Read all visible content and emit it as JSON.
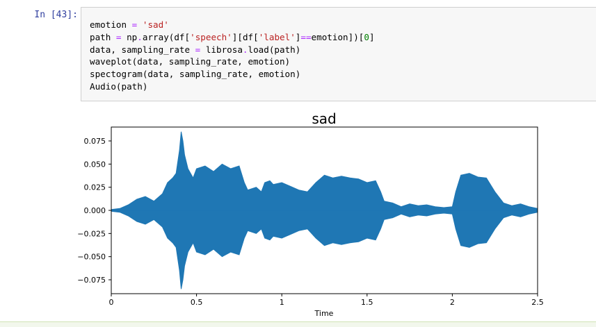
{
  "cell": {
    "prompt": "In [43]:",
    "code_lines": [
      "emotion = 'sad'",
      "path = np.array(df['speech'][df['label']==emotion])[0]",
      "data, sampling_rate = librosa.load(path)",
      "waveplot(data, sampling_rate, emotion)",
      "spectogram(data, sampling_rate, emotion)",
      "Audio(path)"
    ]
  },
  "colors": {
    "waveform": "#1f77b4",
    "prompt": "#303f9f",
    "cell_background": "#f7f7f7"
  },
  "chart_data": {
    "type": "area",
    "title": "sad",
    "xlabel": "Time",
    "ylabel": "",
    "xlim": [
      0,
      2.5
    ],
    "ylim": [
      -0.09,
      0.09
    ],
    "xticks": [
      0,
      0.5,
      1,
      1.5,
      2,
      2.5
    ],
    "xtick_labels": [
      "0",
      "0.5",
      "1",
      "1.5",
      "2",
      "2.5"
    ],
    "yticks": [
      0.075,
      0.05,
      0.025,
      0.0,
      -0.025,
      -0.05,
      -0.075
    ],
    "ytick_labels": [
      "0.075",
      "0.050",
      "0.025",
      "0.000",
      "−0.025",
      "−0.050",
      "−0.075"
    ],
    "grid": false,
    "series": [
      {
        "x": [
          0.0,
          0.05,
          0.1,
          0.15,
          0.2,
          0.25,
          0.3,
          0.33,
          0.36,
          0.38,
          0.4,
          0.41,
          0.42,
          0.43,
          0.45,
          0.48,
          0.5,
          0.55,
          0.6,
          0.65,
          0.7,
          0.75,
          0.78,
          0.8,
          0.85,
          0.88,
          0.9,
          0.93,
          0.95,
          1.0,
          1.05,
          1.1,
          1.15,
          1.2,
          1.25,
          1.3,
          1.35,
          1.4,
          1.45,
          1.5,
          1.55,
          1.58,
          1.6,
          1.65,
          1.7,
          1.75,
          1.8,
          1.85,
          1.9,
          1.95,
          2.0,
          2.02,
          2.05,
          2.1,
          2.15,
          2.2,
          2.25,
          2.3,
          2.35,
          2.4,
          2.45,
          2.5
        ],
        "amplitude": [
          0.001,
          0.002,
          0.006,
          0.012,
          0.015,
          0.01,
          0.018,
          0.03,
          0.035,
          0.04,
          0.065,
          0.085,
          0.075,
          0.06,
          0.045,
          0.035,
          0.045,
          0.048,
          0.042,
          0.05,
          0.045,
          0.048,
          0.03,
          0.022,
          0.025,
          0.02,
          0.03,
          0.032,
          0.028,
          0.03,
          0.026,
          0.022,
          0.02,
          0.03,
          0.038,
          0.035,
          0.037,
          0.035,
          0.034,
          0.03,
          0.032,
          0.02,
          0.01,
          0.008,
          0.004,
          0.007,
          0.005,
          0.006,
          0.004,
          0.003,
          0.004,
          0.02,
          0.038,
          0.04,
          0.036,
          0.035,
          0.02,
          0.008,
          0.005,
          0.007,
          0.004,
          0.002
        ],
        "values_min": [
          -0.001,
          -0.002,
          -0.006,
          -0.012,
          -0.015,
          -0.01,
          -0.018,
          -0.03,
          -0.035,
          -0.04,
          -0.065,
          -0.085,
          -0.075,
          -0.06,
          -0.045,
          -0.035,
          -0.045,
          -0.048,
          -0.042,
          -0.05,
          -0.045,
          -0.048,
          -0.03,
          -0.022,
          -0.025,
          -0.02,
          -0.03,
          -0.032,
          -0.028,
          -0.03,
          -0.026,
          -0.022,
          -0.02,
          -0.03,
          -0.038,
          -0.035,
          -0.037,
          -0.035,
          -0.034,
          -0.03,
          -0.032,
          -0.02,
          -0.01,
          -0.008,
          -0.004,
          -0.007,
          -0.005,
          -0.006,
          -0.004,
          -0.003,
          -0.004,
          -0.02,
          -0.038,
          -0.04,
          -0.036,
          -0.035,
          -0.02,
          -0.008,
          -0.005,
          -0.007,
          -0.004,
          -0.002
        ]
      }
    ]
  }
}
